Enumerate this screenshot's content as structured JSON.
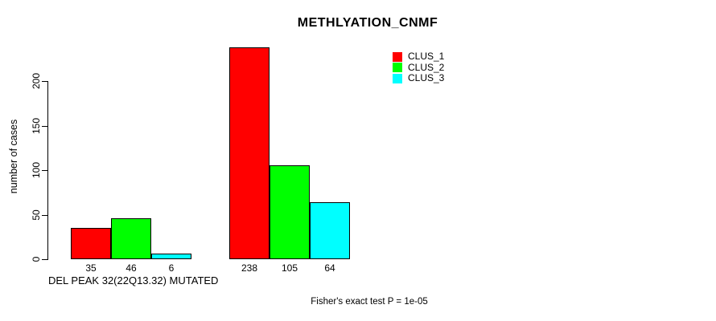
{
  "chart_data": {
    "type": "bar",
    "title": "METHLYATION_CNMF",
    "ylabel": "number of cases",
    "xlabel": "DEL PEAK 32(22Q13.32) MUTATED",
    "footnote": "Fisher's exact test P = 1e-05",
    "ylim": [
      0,
      200
    ],
    "yticks": [
      0,
      50,
      100,
      150,
      200
    ],
    "grid": false,
    "legend_position": "top-right",
    "bar_border_color": "#000000",
    "num_groups": 2,
    "value_labels_shown": true,
    "series": [
      {
        "name": "CLUS_1",
        "color": "#ff0000",
        "values": [
          35,
          238
        ]
      },
      {
        "name": "CLUS_2",
        "color": "#00ff00",
        "values": [
          46,
          105
        ]
      },
      {
        "name": "CLUS_3",
        "color": "#00ffff",
        "values": [
          6,
          64
        ]
      }
    ]
  }
}
